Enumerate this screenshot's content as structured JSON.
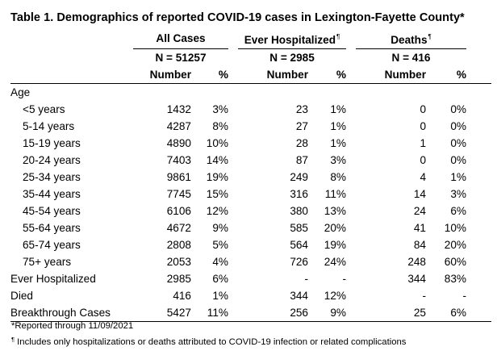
{
  "title": "Table 1. Demographics of reported COVID-19 cases in Lexington-Fayette County*",
  "groups": [
    {
      "name": "All Cases",
      "footnote_mark": "",
      "n_label": "N = 51257"
    },
    {
      "name": "Ever Hospitalized",
      "footnote_mark": "¶",
      "n_label": "N = 2985"
    },
    {
      "name": "Deaths",
      "footnote_mark": "¶",
      "n_label": "N = 416"
    }
  ],
  "column_headers": {
    "number": "Number",
    "percent": "%"
  },
  "section_label": "Age",
  "rows": [
    {
      "label": "<5 years",
      "cells": [
        "1432",
        "3%",
        "23",
        "1%",
        "0",
        "0%"
      ]
    },
    {
      "label": "5-14 years",
      "cells": [
        "4287",
        "8%",
        "27",
        "1%",
        "0",
        "0%"
      ]
    },
    {
      "label": "15-19 years",
      "cells": [
        "4890",
        "10%",
        "28",
        "1%",
        "1",
        "0%"
      ]
    },
    {
      "label": "20-24 years",
      "cells": [
        "7403",
        "14%",
        "87",
        "3%",
        "0",
        "0%"
      ]
    },
    {
      "label": "25-34 years",
      "cells": [
        "9861",
        "19%",
        "249",
        "8%",
        "4",
        "1%"
      ]
    },
    {
      "label": "35-44 years",
      "cells": [
        "7745",
        "15%",
        "316",
        "11%",
        "14",
        "3%"
      ]
    },
    {
      "label": "45-54 years",
      "cells": [
        "6106",
        "12%",
        "380",
        "13%",
        "24",
        "6%"
      ]
    },
    {
      "label": "55-64 years",
      "cells": [
        "4672",
        "9%",
        "585",
        "20%",
        "41",
        "10%"
      ]
    },
    {
      "label": "65-74 years",
      "cells": [
        "2808",
        "5%",
        "564",
        "19%",
        "84",
        "20%"
      ]
    },
    {
      "label": "75+ years",
      "cells": [
        "2053",
        "4%",
        "726",
        "24%",
        "248",
        "60%"
      ]
    },
    {
      "label": "Ever Hospitalized",
      "cells": [
        "2985",
        "6%",
        "-",
        "-",
        "344",
        "83%"
      ]
    },
    {
      "label": "Died",
      "cells": [
        "416",
        "1%",
        "344",
        "12%",
        "-",
        "-"
      ]
    },
    {
      "label": "Breakthrough Cases",
      "cells": [
        "5427",
        "11%",
        "256",
        "9%",
        "25",
        "6%"
      ]
    }
  ],
  "footnotes": {
    "reported": "*Reported through 11/09/2021",
    "mark": "¶",
    "hospital": " Includes only hospitalizations or deaths attributed to COVID-19 infection or related complications"
  }
}
